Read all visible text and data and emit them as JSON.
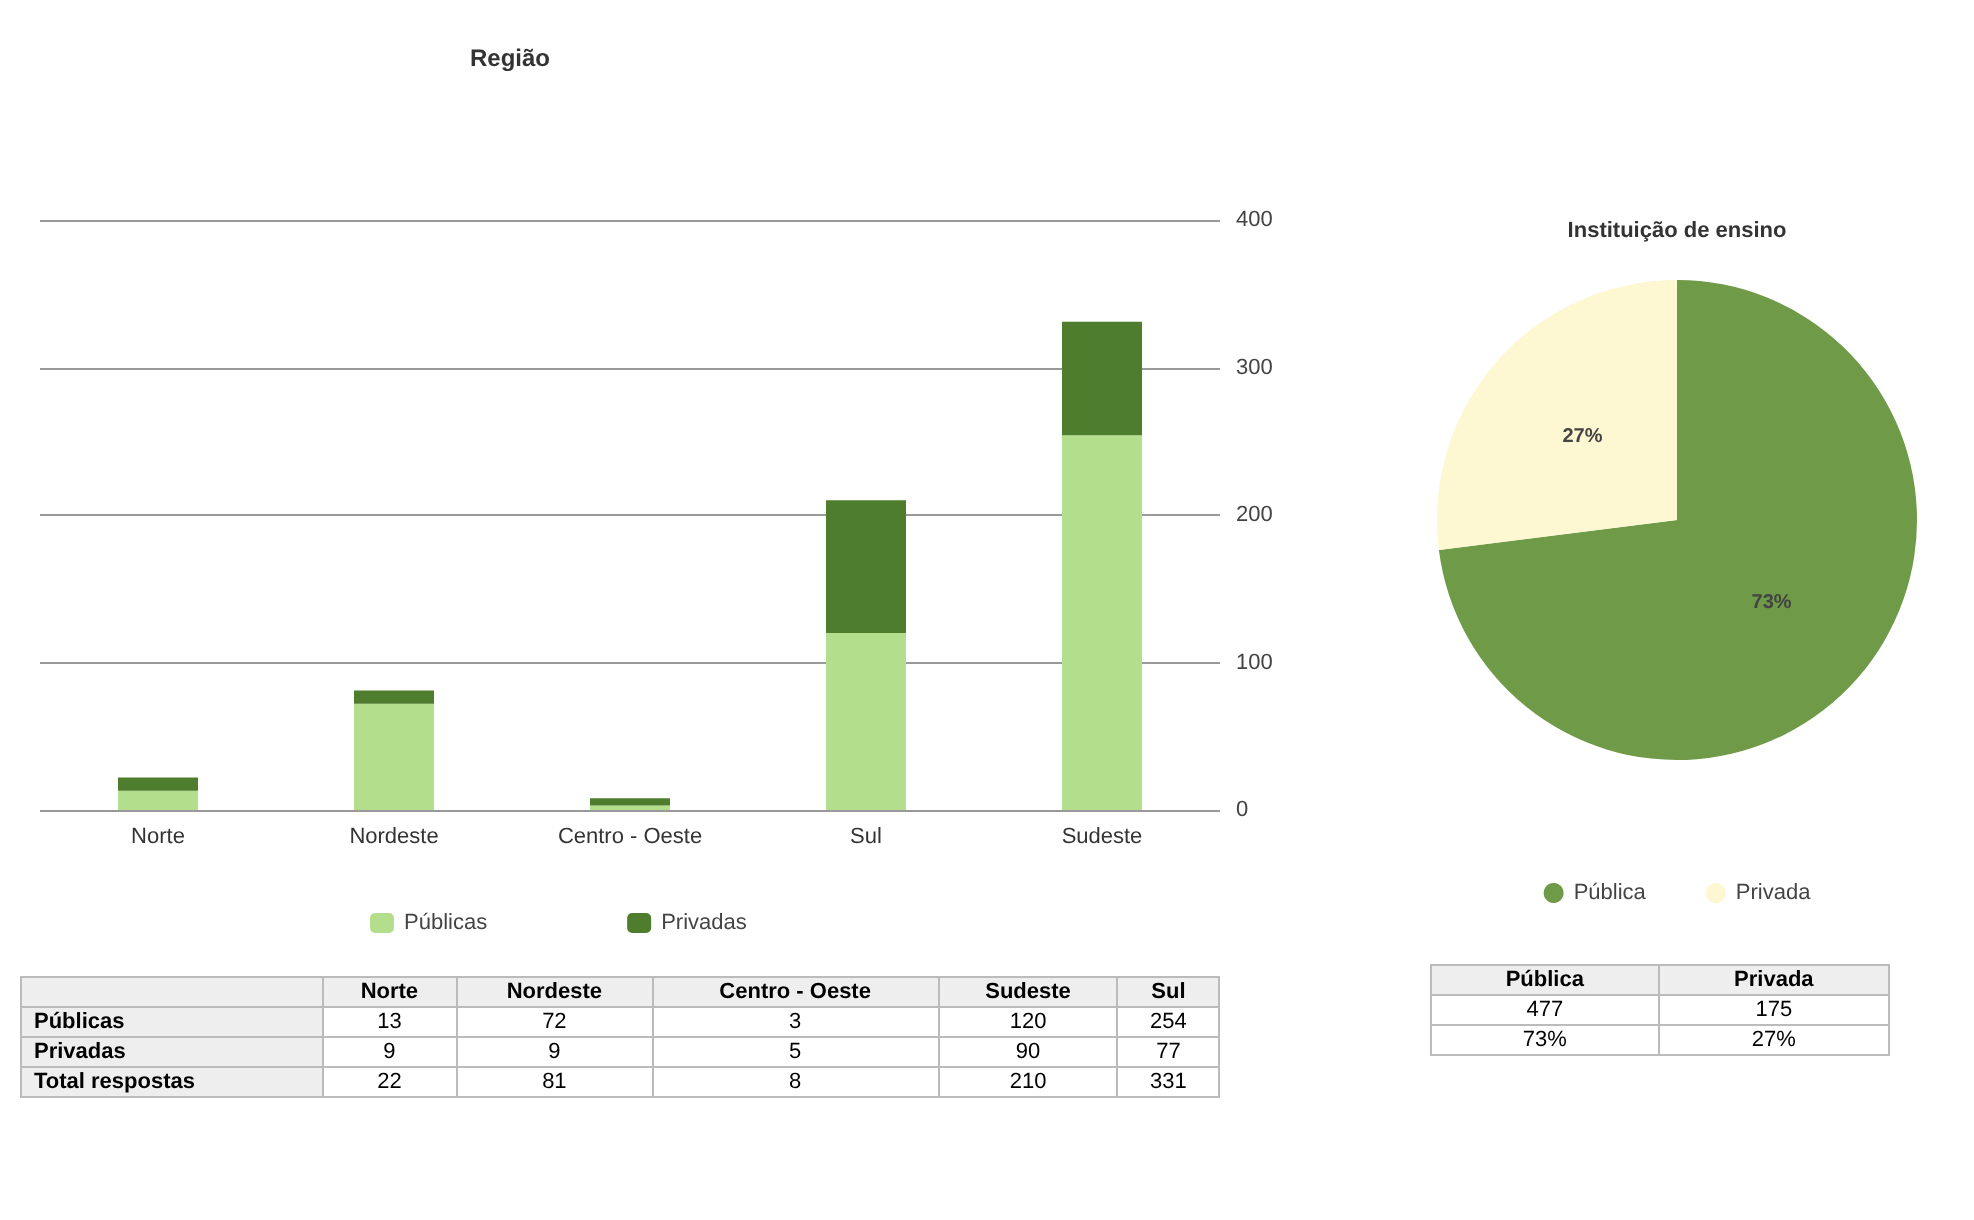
{
  "chart_data": [
    {
      "type": "bar",
      "title": "Região",
      "categories": [
        "Norte",
        "Nordeste",
        "Centro - Oeste",
        "Sul",
        "Sudeste"
      ],
      "stacked": true,
      "series": [
        {
          "name": "Públicas",
          "color": "#b3df8c",
          "values": [
            13,
            72,
            3,
            120,
            254
          ]
        },
        {
          "name": "Privadas",
          "color": "#4e7d2e",
          "values": [
            9,
            9,
            5,
            90,
            77
          ]
        }
      ],
      "ylim": [
        0,
        400
      ],
      "yticks": [
        0,
        100,
        200,
        300,
        400
      ],
      "grid": "y",
      "legend": "bottom"
    },
    {
      "type": "other",
      "categories": [
        "Norte",
        "Nordeste",
        "Centro - Oeste",
        "Sudeste",
        "Sul"
      ],
      "series": [
        {
          "name": "Públicas",
          "values": [
            13,
            72,
            3,
            120,
            254
          ]
        },
        {
          "name": "Privadas",
          "values": [
            9,
            9,
            5,
            90,
            77
          ]
        },
        {
          "name": "Total respostas",
          "values": [
            22,
            81,
            8,
            210,
            331
          ]
        }
      ],
      "data_labels": true
    },
    {
      "type": "pie",
      "title": "Instituição de ensino",
      "categories": [
        "Pública",
        "Privada"
      ],
      "values": [
        73,
        27
      ],
      "colors": [
        "#6f9a47",
        "#fdf7d2"
      ],
      "value_labels": [
        "73%",
        "27%"
      ],
      "legend": "bottom"
    },
    {
      "type": "other",
      "categories": [
        "Pública",
        "Privada"
      ],
      "series": [
        {
          "values": [
            477,
            175
          ],
          "value_labels": [
            "477",
            "175"
          ]
        },
        {
          "values": [
            73,
            27
          ],
          "value_labels": [
            "73%",
            "27%"
          ]
        }
      ]
    }
  ]
}
